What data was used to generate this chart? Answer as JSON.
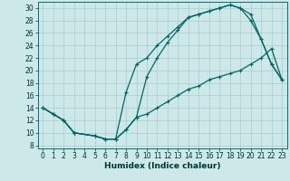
{
  "xlabel": "Humidex (Indice chaleur)",
  "xlim": [
    -0.5,
    23.5
  ],
  "ylim": [
    7.5,
    31
  ],
  "xticks": [
    0,
    1,
    2,
    3,
    4,
    5,
    6,
    7,
    8,
    9,
    10,
    11,
    12,
    13,
    14,
    15,
    16,
    17,
    18,
    19,
    20,
    21,
    22,
    23
  ],
  "yticks": [
    8,
    10,
    12,
    14,
    16,
    18,
    20,
    22,
    24,
    26,
    28,
    30
  ],
  "background_color": "#cce8e8",
  "grid_color": "#aacccc",
  "line_color": "#006666",
  "curve1_x": [
    0,
    1,
    2,
    3,
    5,
    6,
    7,
    8,
    9,
    10,
    11,
    12,
    13,
    14,
    15,
    16,
    17,
    18,
    19,
    20,
    21,
    22,
    23
  ],
  "curve1_y": [
    14,
    13,
    12,
    10,
    9.5,
    9,
    9,
    10.5,
    12.5,
    13,
    14,
    15,
    16,
    17,
    17.5,
    18.5,
    19,
    19.5,
    20,
    21,
    22,
    23.5,
    18.5
  ],
  "curve2_x": [
    0,
    1,
    2,
    3,
    5,
    6,
    7,
    8,
    9,
    10,
    11,
    12,
    13,
    14,
    15,
    16,
    17,
    18,
    19,
    20,
    21,
    22,
    23
  ],
  "curve2_y": [
    14,
    13,
    12,
    10,
    9.5,
    9,
    9,
    16.5,
    21,
    22,
    24,
    25.5,
    27,
    28.5,
    29,
    29.5,
    30,
    30.5,
    30,
    29,
    25,
    21,
    18.5
  ],
  "curve3_x": [
    0,
    1,
    2,
    3,
    5,
    6,
    7,
    8,
    9,
    10,
    11,
    12,
    13,
    14,
    15,
    16,
    17,
    18,
    19,
    20,
    21,
    22,
    23
  ],
  "curve3_y": [
    14,
    13,
    12,
    10,
    9.5,
    9,
    9,
    10.5,
    12.5,
    19,
    22,
    24.5,
    26.5,
    28.5,
    29,
    29.5,
    30,
    30.5,
    30,
    28,
    25,
    21,
    18.5
  ],
  "tick_fontsize": 5.5,
  "label_fontsize": 6.5
}
